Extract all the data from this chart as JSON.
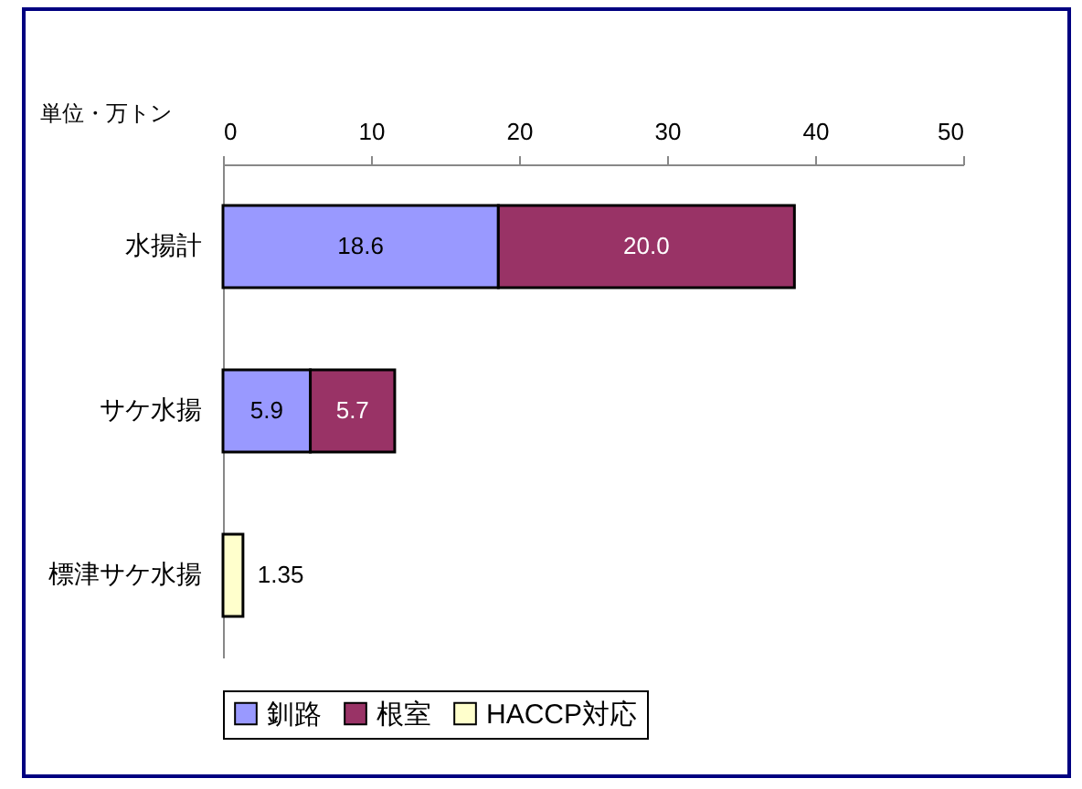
{
  "chart_data": {
    "type": "bar",
    "orientation": "horizontal",
    "stacked": true,
    "categories": [
      "水揚計",
      "サケ水揚",
      "標津サケ水揚"
    ],
    "series": [
      {
        "name": "釧路",
        "color": "#9999ff",
        "values": [
          18.6,
          5.9,
          null
        ]
      },
      {
        "name": "根室",
        "color": "#993366",
        "values": [
          20.0,
          5.7,
          null
        ]
      },
      {
        "name": "HACCP対応",
        "color": "#ffffcc",
        "values": [
          null,
          null,
          1.35
        ]
      }
    ],
    "value_labels": [
      "18.6",
      "20.0",
      "5.9",
      "5.7",
      "1.35"
    ],
    "xlim": [
      0,
      50
    ],
    "xticks": [
      0,
      10,
      20,
      30,
      40,
      50
    ],
    "annotations": [
      "単位・万トン"
    ],
    "legend": "bottom"
  }
}
